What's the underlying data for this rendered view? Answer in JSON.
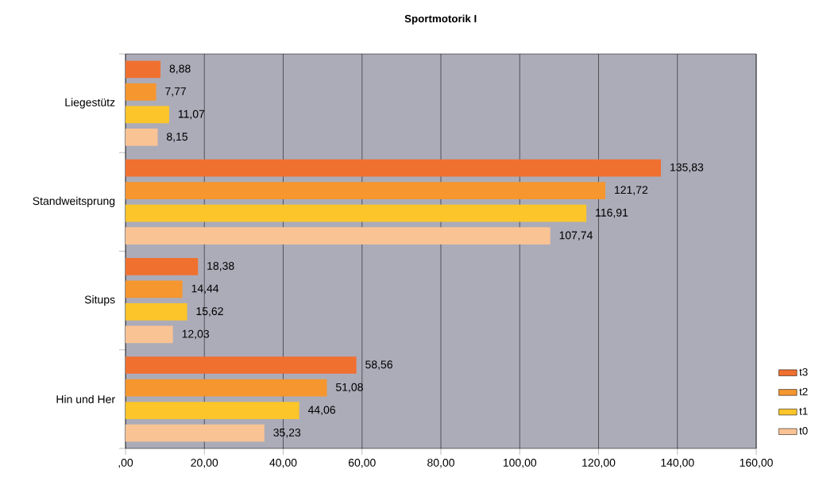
{
  "chart_data": {
    "type": "bar",
    "orientation": "horizontal",
    "title": "Sportmotorik I",
    "categories": [
      "Liegestütz",
      "Standweitsprung",
      "Situps",
      "Hin und Her"
    ],
    "series": [
      {
        "name": "t3",
        "color": "#f07030",
        "values": [
          8.88,
          135.83,
          18.38,
          58.56
        ],
        "value_labels": [
          "8,88",
          "135,83",
          "18,38",
          "58,56"
        ]
      },
      {
        "name": "t2",
        "color": "#f5962f",
        "values": [
          7.77,
          121.72,
          14.44,
          51.08
        ],
        "value_labels": [
          "7,77",
          "121,72",
          "14,44",
          "51,08"
        ]
      },
      {
        "name": "t1",
        "color": "#fcc52a",
        "values": [
          11.07,
          116.91,
          15.62,
          44.06
        ],
        "value_labels": [
          "11,07",
          "116,91",
          "15,62",
          "44,06"
        ]
      },
      {
        "name": "t0",
        "color": "#fac394",
        "values": [
          8.15,
          107.74,
          12.03,
          35.23
        ],
        "value_labels": [
          "8,15",
          "107,74",
          "12,03",
          "35,23"
        ]
      }
    ],
    "xlim": [
      0,
      160
    ],
    "xticks": [
      {
        "value": 0,
        "label": ",00"
      },
      {
        "value": 20,
        "label": "20,00"
      },
      {
        "value": 40,
        "label": "40,00"
      },
      {
        "value": 60,
        "label": "60,00"
      },
      {
        "value": 80,
        "label": "80,00"
      },
      {
        "value": 100,
        "label": "100,00"
      },
      {
        "value": 120,
        "label": "120,00"
      },
      {
        "value": 140,
        "label": "140,00"
      },
      {
        "value": 160,
        "label": "160,00"
      }
    ],
    "grid": "x",
    "legend": "right"
  }
}
